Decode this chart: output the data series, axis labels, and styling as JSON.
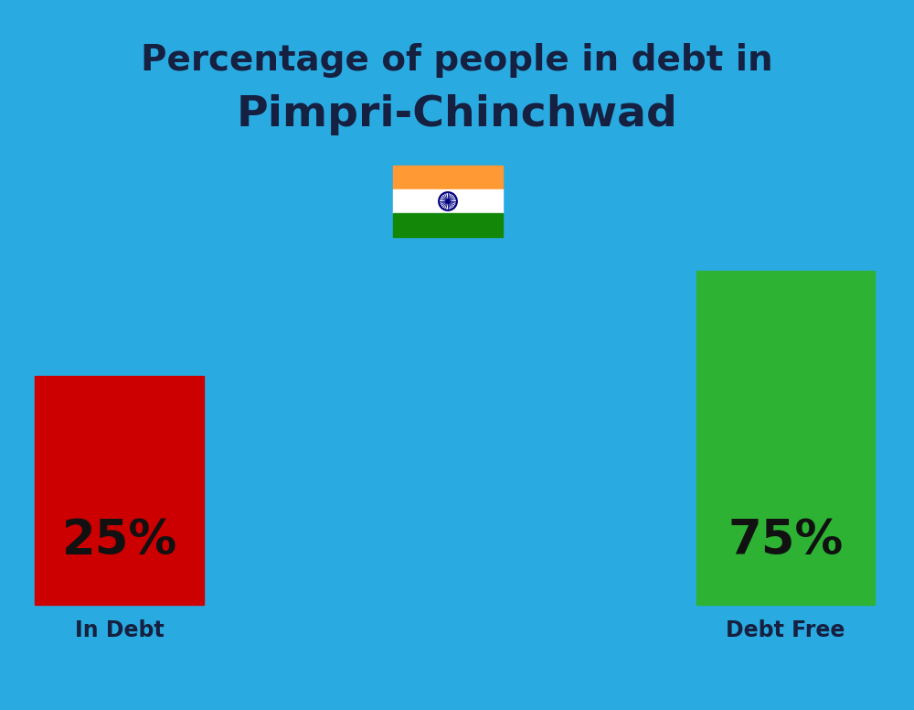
{
  "title_line1": "Percentage of people in debt in",
  "title_line2": "Pimpri-Chinchwad",
  "background_color": "#29ABE2",
  "bar1_value": 25,
  "bar1_label": "25%",
  "bar1_color": "#CC0000",
  "bar1_category": "In Debt",
  "bar2_value": 75,
  "bar2_label": "75%",
  "bar2_color": "#2DB233",
  "bar2_category": "Debt Free",
  "title_fontsize": 28,
  "subtitle_fontsize": 34,
  "category_fontsize": 17,
  "pct_fontsize": 38,
  "title_color": "#162040",
  "category_color": "#162040",
  "pct_color": "#111111",
  "flag_saffron": "#FF9933",
  "flag_white": "#FFFFFF",
  "flag_green": "#138808",
  "flag_chakra": "#000080"
}
